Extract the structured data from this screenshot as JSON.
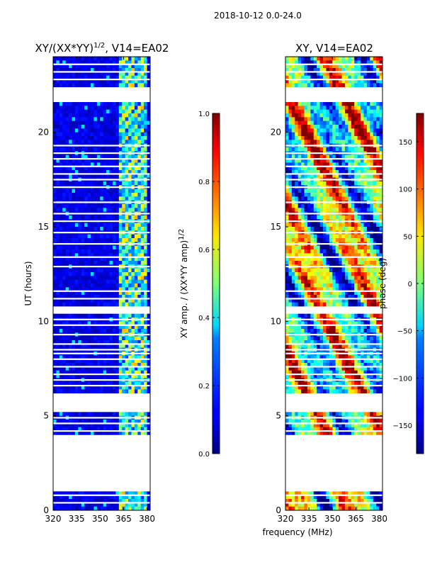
{
  "chart_data": {
    "type": "heatmap",
    "suptitle": "2018-10-12 0.0-24.0",
    "shared_xlabel": "frequency (MHz)",
    "x_ticks": [
      "320",
      "335",
      "350",
      "365",
      "380"
    ],
    "x_tick_values": [
      320,
      335,
      350,
      365,
      380
    ],
    "xlim": [
      320,
      382
    ],
    "y_ticks": [
      "0",
      "5",
      "10",
      "15",
      "20"
    ],
    "y_tick_values": [
      0,
      5,
      10,
      15,
      20
    ],
    "ylim": [
      0,
      24
    ],
    "blank_time_ranges_hours": [
      [
        1.1,
        3.9
      ],
      [
        5.2,
        6.2
      ],
      [
        10.5,
        10.8
      ],
      [
        21.6,
        22.3
      ]
    ],
    "flagged_time_rows_hours": [
      0.4,
      0.8,
      4.2,
      4.6,
      4.9,
      6.6,
      6.9,
      7.2,
      7.6,
      8.0,
      8.3,
      8.5,
      8.8,
      9.3,
      9.8,
      10.1,
      11.2,
      11.6,
      12.9,
      13.4,
      14.1,
      14.7,
      15.3,
      15.7,
      16.3,
      17.1,
      17.5,
      17.8,
      18.2,
      18.6,
      18.9,
      19.3,
      22.8,
      23.2,
      23.6
    ],
    "panels": [
      {
        "title_main": "XY/(XX*YY)",
        "title_sup": "1/2",
        "title_tail": ", V14=EA02",
        "ylabel": "UT (hours)",
        "quantity": "normalized XY amplitude",
        "colorbar": {
          "label_main": "XY amp. / (XX*YY amp)",
          "label_sup": "1/2",
          "ticks": [
            "0.0",
            "0.2",
            "0.4",
            "0.6",
            "0.8",
            "1.0"
          ],
          "tick_values": [
            0.0,
            0.2,
            0.4,
            0.6,
            0.8,
            1.0
          ],
          "range": [
            0.0,
            1.0
          ]
        }
      },
      {
        "title_main": "XY, V14=EA02",
        "quantity": "XY phase",
        "colorbar": {
          "label_main": "phase (deg)",
          "ticks": [
            "−150",
            "−100",
            "−50",
            "0",
            "50",
            "100",
            "150"
          ],
          "tick_values": [
            -150,
            -100,
            -50,
            0,
            50,
            100,
            150
          ],
          "range": [
            -180,
            180
          ]
        }
      }
    ]
  }
}
